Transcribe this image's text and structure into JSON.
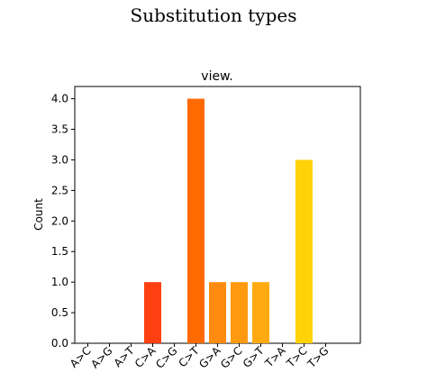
{
  "header": {
    "title": "Substitution types"
  },
  "chart_data": {
    "type": "bar",
    "title": "view.",
    "y_label": "Count",
    "categories": [
      "A>C",
      "A>G",
      "A>T",
      "C>A",
      "C>G",
      "C>T",
      "G>A",
      "G>C",
      "G>T",
      "T>A",
      "T>C",
      "T>G"
    ],
    "values": [
      0,
      0,
      0,
      1,
      0,
      4,
      1,
      1,
      1,
      0,
      3,
      0
    ],
    "colors": [
      "#ff0000",
      "#ff1a00",
      "#ff2e00",
      "#ff4010",
      "#ff5500",
      "#ff6a00",
      "#ff8b10",
      "#ff9a10",
      "#ffaa10",
      "#ffbf00",
      "#ffd20a",
      "#ffe400"
    ],
    "ylim": [
      0,
      4.2
    ],
    "yticks": [
      {
        "value": 0,
        "label": "0.0"
      },
      {
        "value": 0.5,
        "label": "0.5"
      },
      {
        "value": 1,
        "label": "1.0"
      },
      {
        "value": 1.5,
        "label": "1.5"
      },
      {
        "value": 2,
        "label": "2.0"
      },
      {
        "value": 2.5,
        "label": "2.5"
      },
      {
        "value": 3,
        "label": "3.0"
      },
      {
        "value": 3.5,
        "label": "3.5"
      },
      {
        "value": 4,
        "label": "4.0"
      }
    ],
    "grid": false
  }
}
